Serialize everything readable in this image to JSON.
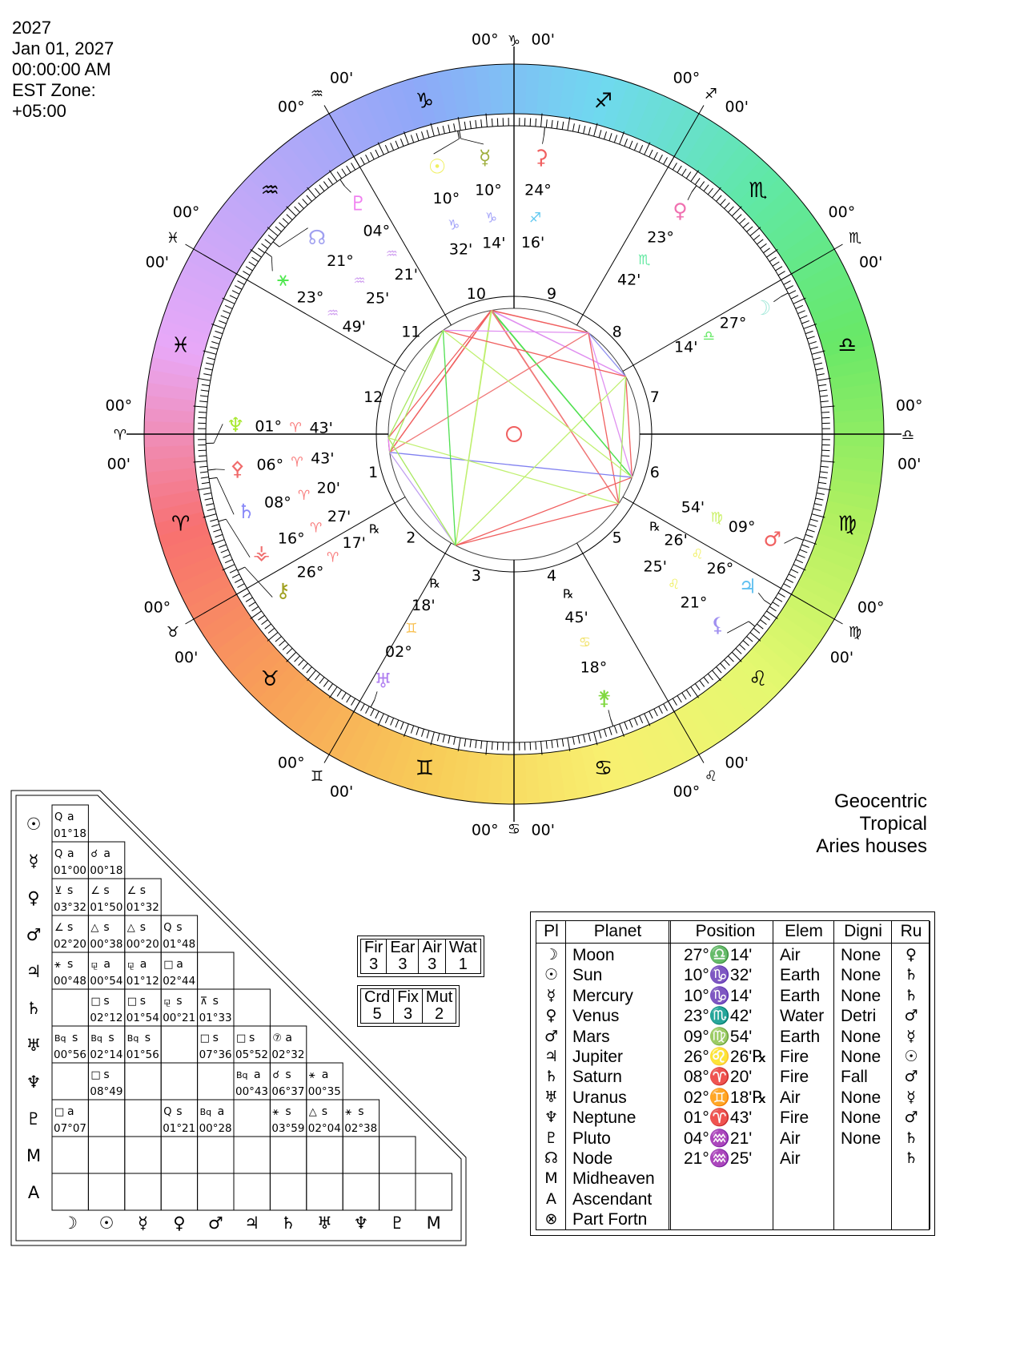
{
  "header": {
    "lines": [
      "2027",
      "Jan 01, 2027",
      "00:00:00 AM",
      "EST Zone:",
      "+05:00"
    ]
  },
  "system": {
    "lines": [
      "Geocentric",
      "Tropical",
      "Aries houses"
    ]
  },
  "wheel": {
    "signs": [
      "♈",
      "♉",
      "♊",
      "♋",
      "♌",
      "♍",
      "♎",
      "♏",
      "♐",
      "♑",
      "♒",
      "♓"
    ],
    "sign_colors": [
      "#f87070",
      "#f8a058",
      "#f8cc58",
      "#f8f070",
      "#e4f870",
      "#b0f060",
      "#68e868",
      "#60e8a8",
      "#70d8f0",
      "#8ea8f8",
      "#bca8f8",
      "#e8a8f8"
    ],
    "cusp_deg": "00°",
    "cusp_min": "00'",
    "houses": [
      "1",
      "2",
      "3",
      "4",
      "5",
      "6",
      "7",
      "8",
      "9",
      "10",
      "11",
      "12"
    ],
    "retro": "℞",
    "bodies": [
      {
        "glyph": "♆",
        "lon": 1.72,
        "deg": "01°",
        "sign": "♈",
        "min": "43'",
        "color": "#a8e830",
        "sign_color": "#f87878"
      },
      {
        "glyph": "⚴",
        "lon": 6.72,
        "deg": "06°",
        "sign": "♈",
        "min": "43'",
        "color": "#f06a6a",
        "sign_color": "#f87878"
      },
      {
        "glyph": "♄",
        "lon": 8.33,
        "deg": "08°",
        "sign": "♈",
        "min": "20'",
        "color": "#8a8af8",
        "sign_color": "#f87878"
      },
      {
        "glyph": "⚶",
        "lon": 16.45,
        "deg": "16°",
        "sign": "♈",
        "min": "27'",
        "color": "#f07070",
        "sign_color": "#f87878"
      },
      {
        "glyph": "⚷",
        "lon": 26.28,
        "deg": "26°",
        "sign": "♈",
        "min": "17'",
        "retro": true,
        "color": "#a0a020",
        "sign_color": "#f87878"
      },
      {
        "glyph": "♅",
        "lon": 62.3,
        "deg": "02°",
        "sign": "♊",
        "min": "18'",
        "retro": true,
        "color": "#b080f0",
        "sign_color": "#f8c050"
      },
      {
        "glyph": "⚵",
        "lon": 108.75,
        "deg": "18°",
        "sign": "♋",
        "min": "45'",
        "retro": true,
        "color": "#80d840",
        "sign_color": "#f0e060"
      },
      {
        "glyph": "⚸",
        "lon": 141.42,
        "deg": "21°",
        "sign": "♌",
        "min": "25'",
        "color": "#a090f0",
        "sign_color": "#f0f060"
      },
      {
        "glyph": "♃",
        "lon": 146.43,
        "deg": "26°",
        "sign": "♌",
        "min": "26'",
        "retro": true,
        "color": "#60c0f0",
        "sign_color": "#f0f060"
      },
      {
        "glyph": "♂",
        "lon": 159.9,
        "deg": "09°",
        "sign": "♍",
        "min": "54'",
        "color": "#f06060",
        "sign_color": "#c8f060"
      },
      {
        "glyph": "☽",
        "lon": 207.23,
        "deg": "27°",
        "sign": "♎",
        "min": "14'",
        "color": "#a0e8d8",
        "sign_color": "#60e860"
      },
      {
        "glyph": "♀",
        "lon": 233.7,
        "deg": "23°",
        "sign": "♏",
        "min": "42'",
        "color": "#f070b0",
        "sign_color": "#60e8a0"
      },
      {
        "glyph": "⚳",
        "lon": 264.27,
        "deg": "24°",
        "sign": "♐",
        "min": "16'",
        "color": "#f06060",
        "sign_color": "#60c8f0"
      },
      {
        "glyph": "☉",
        "lon": 280.53,
        "deg": "10°",
        "sign": "♑",
        "min": "32'",
        "color": "#f0f060",
        "sign_color": "#a0a0f8"
      },
      {
        "glyph": "☿",
        "lon": 280.23,
        "deg": "10°",
        "sign": "♑",
        "min": "14'",
        "color": "#a0b040",
        "sign_color": "#a0a0f8"
      },
      {
        "glyph": "♇",
        "lon": 304.35,
        "deg": "04°",
        "sign": "♒",
        "min": "21'",
        "color": "#f080f0",
        "sign_color": "#d0a0f0"
      },
      {
        "glyph": "☊",
        "lon": 321.42,
        "deg": "21°",
        "sign": "♒",
        "min": "25'",
        "color": "#a0a0f0",
        "sign_color": "#d0a0f0"
      },
      {
        "glyph": "⚹",
        "lon": 323.82,
        "deg": "23°",
        "sign": "♒",
        "min": "49'",
        "color": "#50e850",
        "sign_color": "#d0a0f0"
      }
    ],
    "aspect_colors": {
      "□": "#f06060",
      "☌": "#f080f0",
      "△": "#50e050",
      "⚹": "#a8e860",
      "Q": "#e090f0",
      "∠": "#f06060",
      "⊻": "#9090f0",
      "⚼": "#f07878",
      "Bq": "#c0f070",
      "⊼": "#8080f0",
      "⑦": "#c0a0f0"
    }
  },
  "aspect_grid": {
    "row_labels": [
      "☉",
      "☿",
      "♀",
      "♂",
      "♃",
      "♄",
      "♅",
      "♆",
      "♇",
      "M",
      "A"
    ],
    "col_labels": [
      "☽",
      "☉",
      "☿",
      "♀",
      "♂",
      "♃",
      "♄",
      "♅",
      "♆",
      "♇",
      "M"
    ],
    "rows": [
      [
        {
          "sym": "Q",
          "t": "a",
          "orb": "01°18"
        }
      ],
      [
        {
          "sym": "Q",
          "t": "a",
          "orb": "01°00"
        },
        {
          "sym": "☌",
          "t": "a",
          "orb": "00°18"
        }
      ],
      [
        {
          "sym": "⊻",
          "t": "s",
          "orb": "03°32"
        },
        {
          "sym": "∠",
          "t": "s",
          "orb": "01°50"
        },
        {
          "sym": "∠",
          "t": "s",
          "orb": "01°32"
        }
      ],
      [
        {
          "sym": "∠",
          "t": "s",
          "orb": "02°20"
        },
        {
          "sym": "△",
          "t": "s",
          "orb": "00°38"
        },
        {
          "sym": "△",
          "t": "s",
          "orb": "00°20"
        },
        {
          "sym": "Q",
          "t": "s",
          "orb": "01°48"
        }
      ],
      [
        {
          "sym": "⚹",
          "t": "s",
          "orb": "00°48"
        },
        {
          "sym": "⚼",
          "t": "a",
          "orb": "00°54"
        },
        {
          "sym": "⚼",
          "t": "a",
          "orb": "01°12"
        },
        {
          "sym": "□",
          "t": "a",
          "orb": "02°44"
        },
        null
      ],
      [
        null,
        {
          "sym": "□",
          "t": "s",
          "orb": "02°12"
        },
        {
          "sym": "□",
          "t": "s",
          "orb": "01°54"
        },
        {
          "sym": "⚼",
          "t": "s",
          "orb": "00°21"
        },
        {
          "sym": "⊼",
          "t": "s",
          "orb": "01°33"
        },
        null
      ],
      [
        {
          "sym": "Bq",
          "t": "s",
          "orb": "00°56"
        },
        {
          "sym": "Bq",
          "t": "s",
          "orb": "02°14"
        },
        {
          "sym": "Bq",
          "t": "s",
          "orb": "01°56"
        },
        null,
        {
          "sym": "□",
          "t": "s",
          "orb": "07°36"
        },
        {
          "sym": "□",
          "t": "s",
          "orb": "05°52"
        },
        {
          "sym": "⑦",
          "t": "a",
          "orb": "02°32"
        }
      ],
      [
        null,
        {
          "sym": "□",
          "t": "s",
          "orb": "08°49"
        },
        null,
        null,
        null,
        {
          "sym": "Bq",
          "t": "a",
          "orb": "00°43"
        },
        {
          "sym": "☌",
          "t": "s",
          "orb": "06°37"
        },
        {
          "sym": "⚹",
          "t": "a",
          "orb": "00°35"
        }
      ],
      [
        {
          "sym": "□",
          "t": "a",
          "orb": "07°07"
        },
        null,
        null,
        {
          "sym": "Q",
          "t": "s",
          "orb": "01°21"
        },
        {
          "sym": "Bq",
          "t": "a",
          "orb": "00°28"
        },
        null,
        {
          "sym": "⚹",
          "t": "s",
          "orb": "03°59"
        },
        {
          "sym": "△",
          "t": "s",
          "orb": "02°04"
        },
        {
          "sym": "⚹",
          "t": "s",
          "orb": "02°38"
        }
      ],
      [
        null,
        null,
        null,
        null,
        null,
        null,
        null,
        null,
        null,
        null
      ],
      [
        null,
        null,
        null,
        null,
        null,
        null,
        null,
        null,
        null,
        null,
        null
      ]
    ]
  },
  "elements": {
    "labels": [
      "Fir",
      "Ear",
      "Air",
      "Wat"
    ],
    "values": [
      "3",
      "3",
      "3",
      "1"
    ]
  },
  "modalities": {
    "labels": [
      "Crd",
      "Fix",
      "Mut"
    ],
    "values": [
      "5",
      "3",
      "2"
    ]
  },
  "planet_table": {
    "headers": [
      "Pl",
      "Planet",
      "Position",
      "Elem",
      "Digni",
      "Ru"
    ],
    "rows": [
      {
        "pl": "☽",
        "name": "Moon",
        "pos": "27°♎14'",
        "elem": "Air",
        "dig": "None",
        "ru": "♀"
      },
      {
        "pl": "☉",
        "name": "Sun",
        "pos": "10°♑32'",
        "elem": "Earth",
        "dig": "None",
        "ru": "♄"
      },
      {
        "pl": "☿",
        "name": "Mercury",
        "pos": "10°♑14'",
        "elem": "Earth",
        "dig": "None",
        "ru": "♄"
      },
      {
        "pl": "♀",
        "name": "Venus",
        "pos": "23°♏42'",
        "elem": "Water",
        "dig": "Detri",
        "ru": "♂"
      },
      {
        "pl": "♂",
        "name": "Mars",
        "pos": "09°♍54'",
        "elem": "Earth",
        "dig": "None",
        "ru": "☿"
      },
      {
        "pl": "♃",
        "name": "Jupiter",
        "pos": "26°♌26'℞",
        "elem": "Fire",
        "dig": "None",
        "ru": "☉"
      },
      {
        "pl": "♄",
        "name": "Saturn",
        "pos": "08°♈20'",
        "elem": "Fire",
        "dig": "Fall",
        "ru": "♂"
      },
      {
        "pl": "♅",
        "name": "Uranus",
        "pos": "02°♊18'℞",
        "elem": "Air",
        "dig": "None",
        "ru": "☿"
      },
      {
        "pl": "♆",
        "name": "Neptune",
        "pos": "01°♈43'",
        "elem": "Fire",
        "dig": "None",
        "ru": "♂"
      },
      {
        "pl": "♇",
        "name": "Pluto",
        "pos": "04°♒21'",
        "elem": "Air",
        "dig": "None",
        "ru": "♄"
      },
      {
        "pl": "☊",
        "name": "Node",
        "pos": "21°♒25'",
        "elem": "Air",
        "dig": "",
        "ru": "♄"
      },
      {
        "pl": "M",
        "name": "Midheaven",
        "pos": "",
        "elem": "",
        "dig": "",
        "ru": ""
      },
      {
        "pl": "A",
        "name": "Ascendant",
        "pos": "",
        "elem": "",
        "dig": "",
        "ru": ""
      },
      {
        "pl": "⊗",
        "name": "Part Fortn",
        "pos": "",
        "elem": "",
        "dig": "",
        "ru": ""
      }
    ]
  }
}
